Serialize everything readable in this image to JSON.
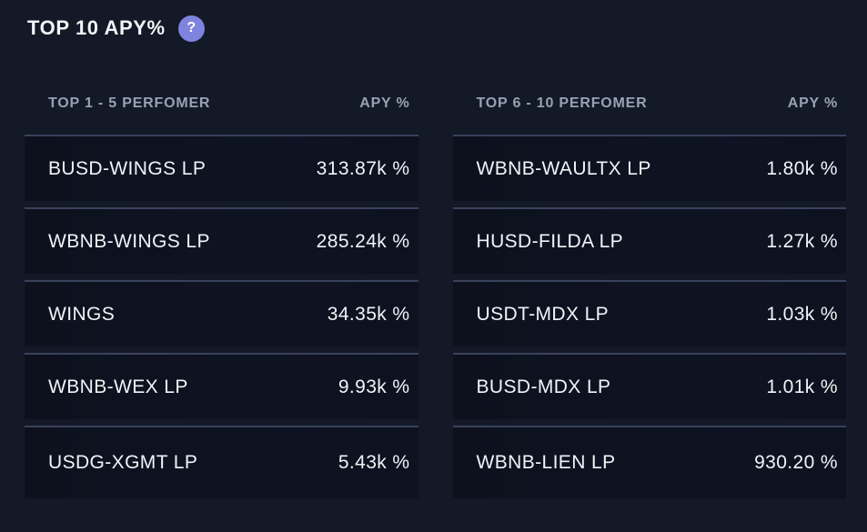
{
  "header": {
    "title": "TOP 10 APY%",
    "help_icon_glyph": "?"
  },
  "colors": {
    "background": "#141927",
    "row_background": "#0e1322",
    "row_border_top": "#39425c",
    "header_text": "#99a1b5",
    "row_text": "#f1f3f7",
    "title_text": "#f2f4f8",
    "help_icon_background": "#7e84de"
  },
  "tables": [
    {
      "name_header": "TOP 1 - 5 PERFOMER",
      "value_header": "APY %",
      "rows": [
        {
          "name": "BUSD-WINGS LP",
          "value": "313.87k %"
        },
        {
          "name": "WBNB-WINGS LP",
          "value": "285.24k %"
        },
        {
          "name": "WINGS",
          "value": "34.35k %"
        },
        {
          "name": "WBNB-WEX LP",
          "value": "9.93k %"
        },
        {
          "name": "USDG-XGMT LP",
          "value": "5.43k %"
        }
      ]
    },
    {
      "name_header": "TOP 6 - 10 PERFOMER",
      "value_header": "APY %",
      "rows": [
        {
          "name": "WBNB-WAULTX LP",
          "value": "1.80k %"
        },
        {
          "name": "HUSD-FILDA LP",
          "value": "1.27k %"
        },
        {
          "name": "USDT-MDX LP",
          "value": "1.03k %"
        },
        {
          "name": "BUSD-MDX LP",
          "value": "1.01k %"
        },
        {
          "name": "WBNB-LIEN LP",
          "value": "930.20 %"
        }
      ]
    }
  ]
}
